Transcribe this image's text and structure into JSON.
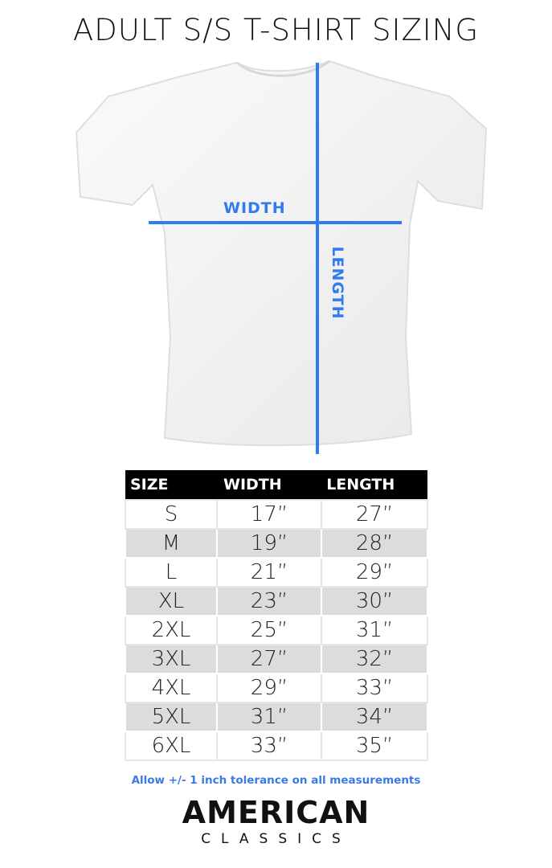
{
  "title": "ADULT S/S T-SHIRT SIZING",
  "diagram": {
    "width_label": "WIDTH",
    "length_label": "LENGTH",
    "line_color": "#2f7bf0",
    "shirt_color": "#ffffff"
  },
  "table": {
    "headers": [
      "SIZE",
      "WIDTH",
      "LENGTH"
    ],
    "rows": [
      [
        "S",
        "17”",
        "27”"
      ],
      [
        "M",
        "19”",
        "28”"
      ],
      [
        "L",
        "21”",
        "29”"
      ],
      [
        "XL",
        "23”",
        "30”"
      ],
      [
        "2XL",
        "25”",
        "31”"
      ],
      [
        "3XL",
        "27”",
        "32”"
      ],
      [
        "4XL",
        "29”",
        "33”"
      ],
      [
        "5XL",
        "31”",
        "34”"
      ],
      [
        "6XL",
        "33”",
        "35”"
      ]
    ]
  },
  "note": "Allow +/- 1 inch tolerance on all measurements",
  "brand": {
    "line1": "AMERICAN",
    "line2": "CLASSICS"
  }
}
